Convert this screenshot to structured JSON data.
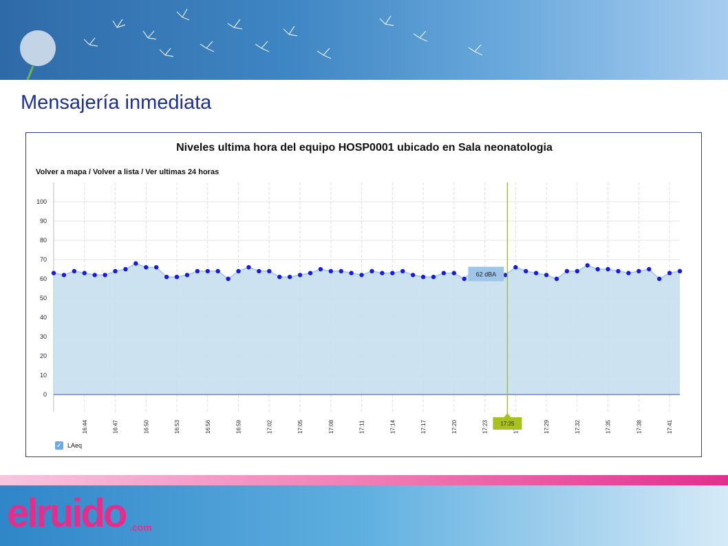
{
  "slide": {
    "heading": "Mensajería inmediata",
    "banner_icon": "dandelion-banner",
    "logo_text": "elruido",
    "logo_suffix": ".com"
  },
  "chart_data": {
    "type": "area",
    "title": "Niveles ultima hora del equipo HOSP0001 ubicado en Sala neonatologia",
    "nav": {
      "link1": "Volver a mapa",
      "sep": " / ",
      "link2": "Volver a lista",
      "link3": "Ver ultimas 24 horas"
    },
    "ylim": [
      0,
      100
    ],
    "yticks": [
      "0",
      "10",
      "20",
      "30",
      "40",
      "50",
      "60",
      "70",
      "80",
      "90",
      "100"
    ],
    "xtick_labels": [
      "16:44",
      "16:47",
      "16:50",
      "16:53",
      "16:56",
      "16:59",
      "17:02",
      "17:05",
      "17:08",
      "17:11",
      "17:14",
      "17:17",
      "17:20",
      "17:23",
      "17:26",
      "17:29",
      "17:32",
      "17:35",
      "17:38",
      "17:41"
    ],
    "series": [
      {
        "name": "LAeq",
        "color": "#1a1adc",
        "fill": "#c6dff0",
        "values": [
          63,
          62,
          64,
          63,
          62,
          62,
          64,
          65,
          68,
          66,
          66,
          61,
          61,
          62,
          64,
          64,
          64,
          60,
          64,
          66,
          64,
          64,
          61,
          61,
          62,
          63,
          65,
          64,
          64,
          63,
          62,
          64,
          63,
          63,
          64,
          62,
          61,
          61,
          63,
          63,
          60,
          65,
          64,
          63,
          62,
          66,
          64,
          63,
          62,
          60,
          64,
          64,
          67,
          65,
          65,
          64,
          63,
          64,
          65,
          60,
          63,
          64
        ]
      }
    ],
    "tooltip": {
      "text": "62 dBA",
      "index": 44
    },
    "crosshair_label": "17:25",
    "crosshair_color": "#a8c020",
    "grid": true,
    "legend": "bottom-left"
  }
}
